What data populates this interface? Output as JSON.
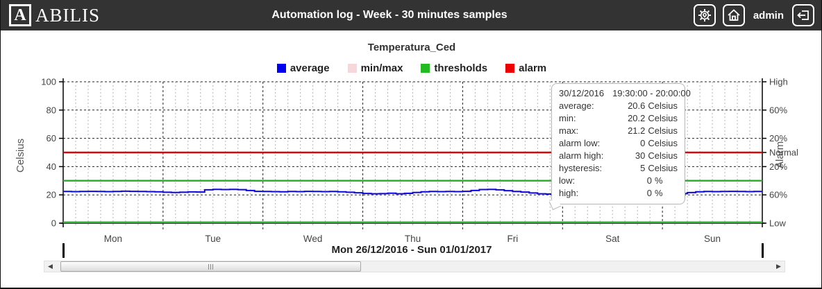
{
  "header": {
    "logo_letter": "A",
    "logo_text": "ABILIS",
    "title": "Automation log - Week - 30 minutes samples",
    "user": "admin",
    "icons": [
      "settings",
      "home",
      "logout"
    ]
  },
  "legend": {
    "items": [
      {
        "label": "average",
        "color": "#0000ee"
      },
      {
        "label": "min/max",
        "color": "#f8d7da"
      },
      {
        "label": "thresholds",
        "color": "#22bb22"
      },
      {
        "label": "alarm",
        "color": "#ee0000"
      }
    ]
  },
  "tooltip": {
    "date": "30/12/2016",
    "time_range": "19:30:00 - 20:00:00",
    "rows": [
      {
        "label": "average:",
        "value": "20.6",
        "unit": "Celsius"
      },
      {
        "label": "min:",
        "value": "20.2",
        "unit": "Celsius"
      },
      {
        "label": "max:",
        "value": "21.2",
        "unit": "Celsius"
      },
      {
        "label": "alarm low:",
        "value": "0",
        "unit": "Celsius"
      },
      {
        "label": "alarm high:",
        "value": "30",
        "unit": "Celsius"
      },
      {
        "label": "hysteresis:",
        "value": "5",
        "unit": "Celsius"
      },
      {
        "label": "low:",
        "value": "0",
        "unit": "%"
      },
      {
        "label": "high:",
        "value": "0",
        "unit": "%"
      }
    ]
  },
  "footer": {
    "range_label": "Mon 26/12/2016 - Sun 01/01/2017"
  },
  "chart_data": {
    "type": "line",
    "title": "Temperatura_Ced",
    "ylabel_left": "Celsius",
    "ylabel_right": "Alarm",
    "ylim": [
      0,
      100
    ],
    "left_ticks": [
      0,
      20,
      40,
      60,
      80,
      100
    ],
    "right_ticks": [
      {
        "value": 100,
        "label": "High"
      },
      {
        "value": 80,
        "label": "60%"
      },
      {
        "value": 60,
        "label": "20%"
      },
      {
        "value": 50,
        "label": "Normal"
      },
      {
        "value": 40,
        "label": "20%"
      },
      {
        "value": 20,
        "label": "60%"
      },
      {
        "value": 0,
        "label": "Low"
      }
    ],
    "x_days": [
      "Mon",
      "Tue",
      "Wed",
      "Thu",
      "Fri",
      "Sat",
      "Sun"
    ],
    "x_range_hours": [
      0,
      168
    ],
    "minor_grid_hours": 3,
    "major_grid_hours": 24,
    "grid": true,
    "legend_position": "top-center",
    "series": {
      "average": {
        "name": "average",
        "color": "#0a0ae0",
        "unit": "Celsius",
        "x_start_hour": 0,
        "x_step_hours": 2,
        "values": [
          22.4,
          22.3,
          22.4,
          22.5,
          22.4,
          22.3,
          22.4,
          22.6,
          22.5,
          22.4,
          22.3,
          22.2,
          21.9,
          21.7,
          21.9,
          22.1,
          22.0,
          23.6,
          23.9,
          23.8,
          23.9,
          23.7,
          23.1,
          22.5,
          22.4,
          22.3,
          22.2,
          22.4,
          22.3,
          22.5,
          22.4,
          22.3,
          22.4,
          22.2,
          21.9,
          21.5,
          21.0,
          20.8,
          20.9,
          21.2,
          20.8,
          21.1,
          21.7,
          22.2,
          22.4,
          22.3,
          22.4,
          22.3,
          22.5,
          23.1,
          23.8,
          23.9,
          23.6,
          23.0,
          22.4,
          22.0,
          21.4,
          20.8,
          20.6,
          20.9,
          21.1,
          21.3,
          21.4,
          21.5,
          21.4,
          21.5,
          21.6,
          21.5,
          21.4,
          21.5,
          21.4,
          21.2,
          20.4,
          20.5,
          20.9,
          21.6,
          22.2,
          22.4,
          22.3,
          22.4,
          22.5,
          22.4,
          22.3,
          22.4,
          22.4
        ]
      },
      "minmax_band": {
        "name": "min/max",
        "color": "#f8d7da",
        "delta": 0.5
      },
      "thresholds": {
        "name": "thresholds",
        "color": "#2db22d",
        "values": [
          30,
          0.6
        ]
      },
      "alarm": {
        "name": "alarm",
        "color": "#d40808",
        "value": 50,
        "level_label": "Normal"
      }
    }
  }
}
